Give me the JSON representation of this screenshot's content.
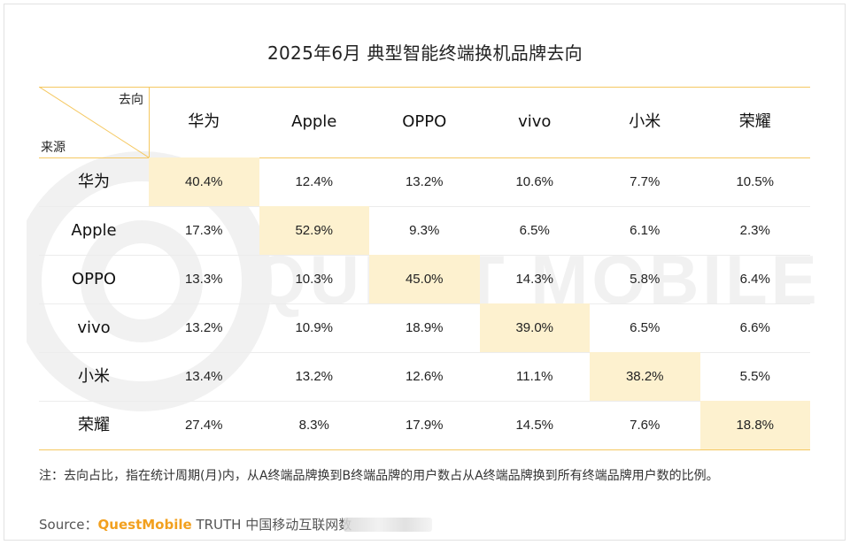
{
  "title": "2025年6月 典型智能终端换机品牌去向",
  "corner": {
    "to_label": "去向",
    "from_label": "来源"
  },
  "chart_data": {
    "type": "table",
    "columns": [
      "华为",
      "Apple",
      "OPPO",
      "vivo",
      "小米",
      "荣耀"
    ],
    "rows": [
      {
        "label": "华为",
        "cells": [
          "40.4%",
          "12.4%",
          "13.2%",
          "10.6%",
          "7.7%",
          "10.5%"
        ]
      },
      {
        "label": "Apple",
        "cells": [
          "17.3%",
          "52.9%",
          "9.3%",
          "6.5%",
          "6.1%",
          "2.3%"
        ]
      },
      {
        "label": "OPPO",
        "cells": [
          "13.3%",
          "10.3%",
          "45.0%",
          "14.3%",
          "5.8%",
          "6.4%"
        ]
      },
      {
        "label": "vivo",
        "cells": [
          "13.2%",
          "10.9%",
          "18.9%",
          "39.0%",
          "6.5%",
          "6.6%"
        ]
      },
      {
        "label": "小米",
        "cells": [
          "13.4%",
          "13.2%",
          "12.6%",
          "11.1%",
          "38.2%",
          "5.5%"
        ]
      },
      {
        "label": "荣耀",
        "cells": [
          "27.4%",
          "8.3%",
          "17.9%",
          "14.5%",
          "7.6%",
          "18.8%"
        ]
      }
    ],
    "highlight": "diagonal"
  },
  "note": "注：去向占比，指在统计周期(月)内，从A终端品牌换到B终端品牌的用户数占从A终端品牌换到所有终端品牌用户数的比例。",
  "source": {
    "prefix": "Source：",
    "brand": "QuestMobile",
    "rest": " TRUTH 中国移动互联网数"
  },
  "watermark": "QUEST MOBILE",
  "colors": {
    "accent_line": "#f5c861",
    "highlight_fill": "#fdf1cf",
    "brand": "#f2a01e",
    "row_line": "#ececec"
  }
}
